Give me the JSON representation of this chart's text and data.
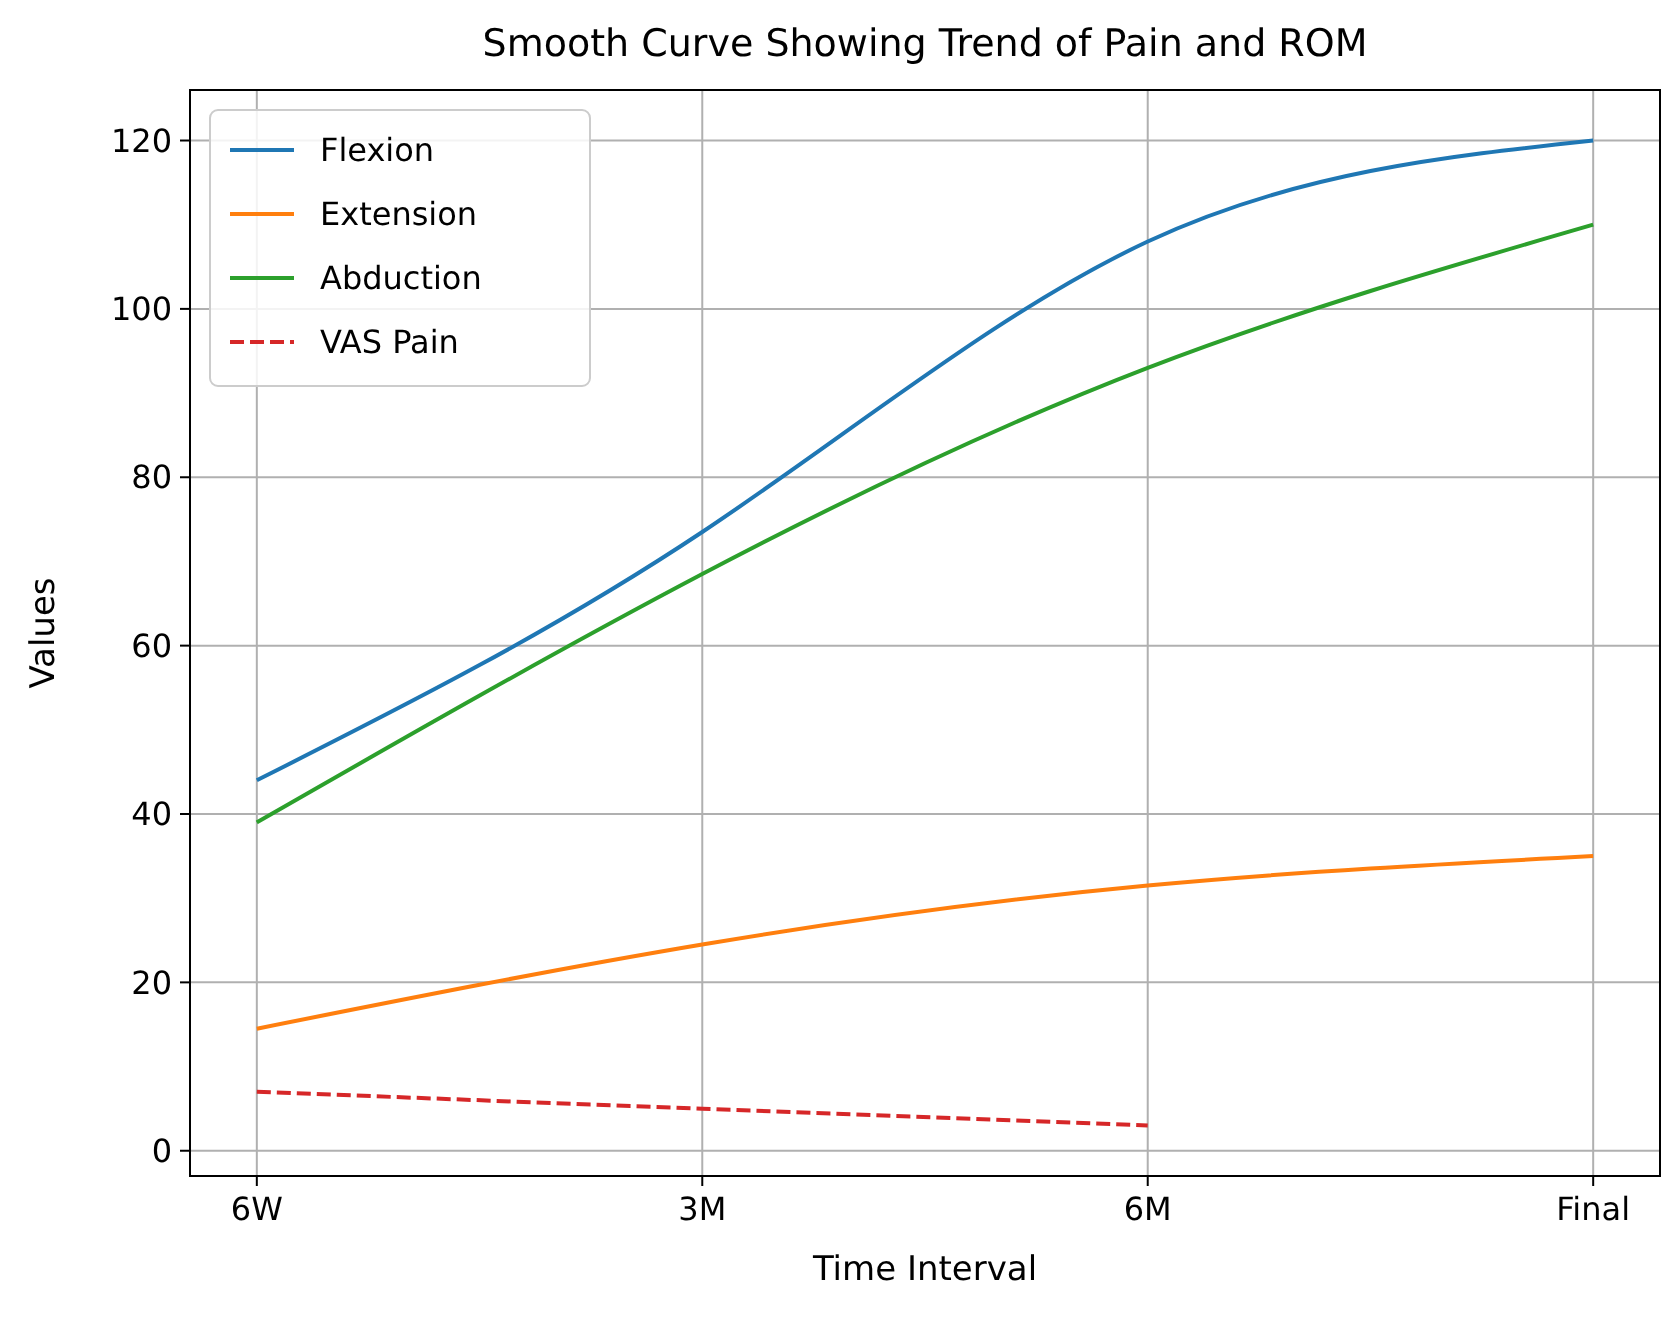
{
  "chart_data": {
    "type": "line",
    "title": "Smooth Curve Showing Trend of Pain and ROM",
    "xlabel": "Time Interval",
    "ylabel": "Values",
    "categories": [
      "6W",
      "3M",
      "6M",
      "Final"
    ],
    "ylim": [
      -3,
      126
    ],
    "yticks": [
      0,
      20,
      40,
      60,
      80,
      100,
      120
    ],
    "grid": true,
    "legend": "top left",
    "marker": "none",
    "series": [
      {
        "name": "Flexion",
        "color": "#1f77b4",
        "values": [
          44,
          73.5,
          108,
          120
        ]
      },
      {
        "name": "Extension",
        "color": "#ff7f0e",
        "values": [
          14.5,
          24.5,
          31.5,
          35
        ]
      },
      {
        "name": "Abduction",
        "color": "#2ca02c",
        "values": [
          39,
          68.5,
          93,
          110
        ]
      },
      {
        "name": "VAS Pain",
        "color": "#d62728",
        "line_style": "dashed",
        "values": [
          7,
          5,
          3,
          null
        ]
      }
    ]
  }
}
